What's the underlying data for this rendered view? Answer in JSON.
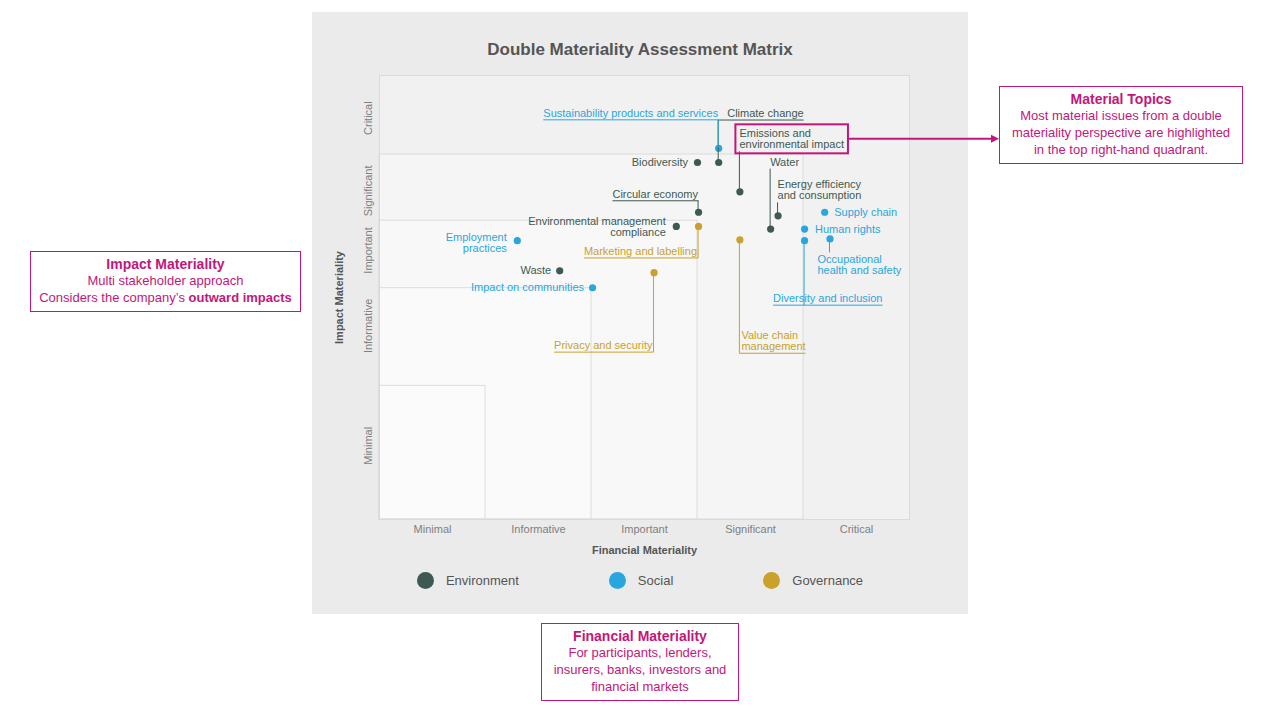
{
  "chart_data": {
    "type": "scatter",
    "title": "Double Materiality Assessment Matrix",
    "x_label": "Financial Materiality",
    "y_label": "Impact Materiality",
    "xlim": [
      0,
      5
    ],
    "ylim": [
      0,
      5
    ],
    "xticks": [
      {
        "value": 0.5,
        "label": "Minimal"
      },
      {
        "value": 1.5,
        "label": "Informative"
      },
      {
        "value": 2.5,
        "label": "Important"
      },
      {
        "value": 3.5,
        "label": "Significant"
      },
      {
        "value": 4.5,
        "label": "Critical"
      }
    ],
    "yticks": [
      {
        "value": 0.83,
        "label": "Minimal"
      },
      {
        "value": 2.18,
        "label": "Informative"
      },
      {
        "value": 3.03,
        "label": "Important"
      },
      {
        "value": 3.7,
        "label": "Significant"
      },
      {
        "value": 4.52,
        "label": "Critical"
      }
    ],
    "series": [
      {
        "name": "Environment",
        "color": "#3d5a52",
        "labels": [
          "Climate change",
          "Biodiversity",
          "Emissions and environmental impact",
          "Circular economy",
          "Water",
          "Energy efficiency and consumption",
          "Environmental management compliance",
          "Waste"
        ],
        "x": [
          3.2,
          3.0,
          3.4,
          3.01,
          3.69,
          3.76,
          2.8,
          1.7
        ],
        "y": [
          4.02,
          4.02,
          3.69,
          3.46,
          3.27,
          3.42,
          3.3,
          2.8
        ]
      },
      {
        "name": "Social",
        "color": "#2aa6de",
        "labels": [
          "Sustainability products and services",
          "Supply chain",
          "Human rights",
          "Occupational health and safety",
          "Diversity and inclusion",
          "Employment practices",
          "Impact on communities"
        ],
        "x": [
          3.2,
          4.2,
          4.01,
          4.25,
          4.01,
          1.3,
          2.01
        ],
        "y": [
          4.18,
          3.46,
          3.27,
          3.16,
          3.14,
          3.14,
          2.61
        ]
      },
      {
        "name": "Governance",
        "color": "#c9a12b",
        "labels": [
          "Marketing and labelling",
          "Value chain management",
          "Privacy and security"
        ],
        "x": [
          3.01,
          3.4,
          2.59
        ],
        "y": [
          3.3,
          3.15,
          2.78
        ]
      }
    ],
    "legend": "bottom",
    "annotations": [
      {
        "title": "Material Topics",
        "text": "Most material issues from a double materiality perspective are highlighted in the top right-hand quadrant.",
        "points_to": "Emissions and environmental impact"
      },
      {
        "title": "Impact Materiality",
        "text": [
          "Multi stakeholder approach",
          "Considers the company’s outward impacts"
        ],
        "emphasis": "outward impacts",
        "axis": "y"
      },
      {
        "title": "Financial Materiality",
        "text": "For participants, lenders, insurers, banks, investors and financial markets",
        "axis": "x"
      }
    ]
  }
}
